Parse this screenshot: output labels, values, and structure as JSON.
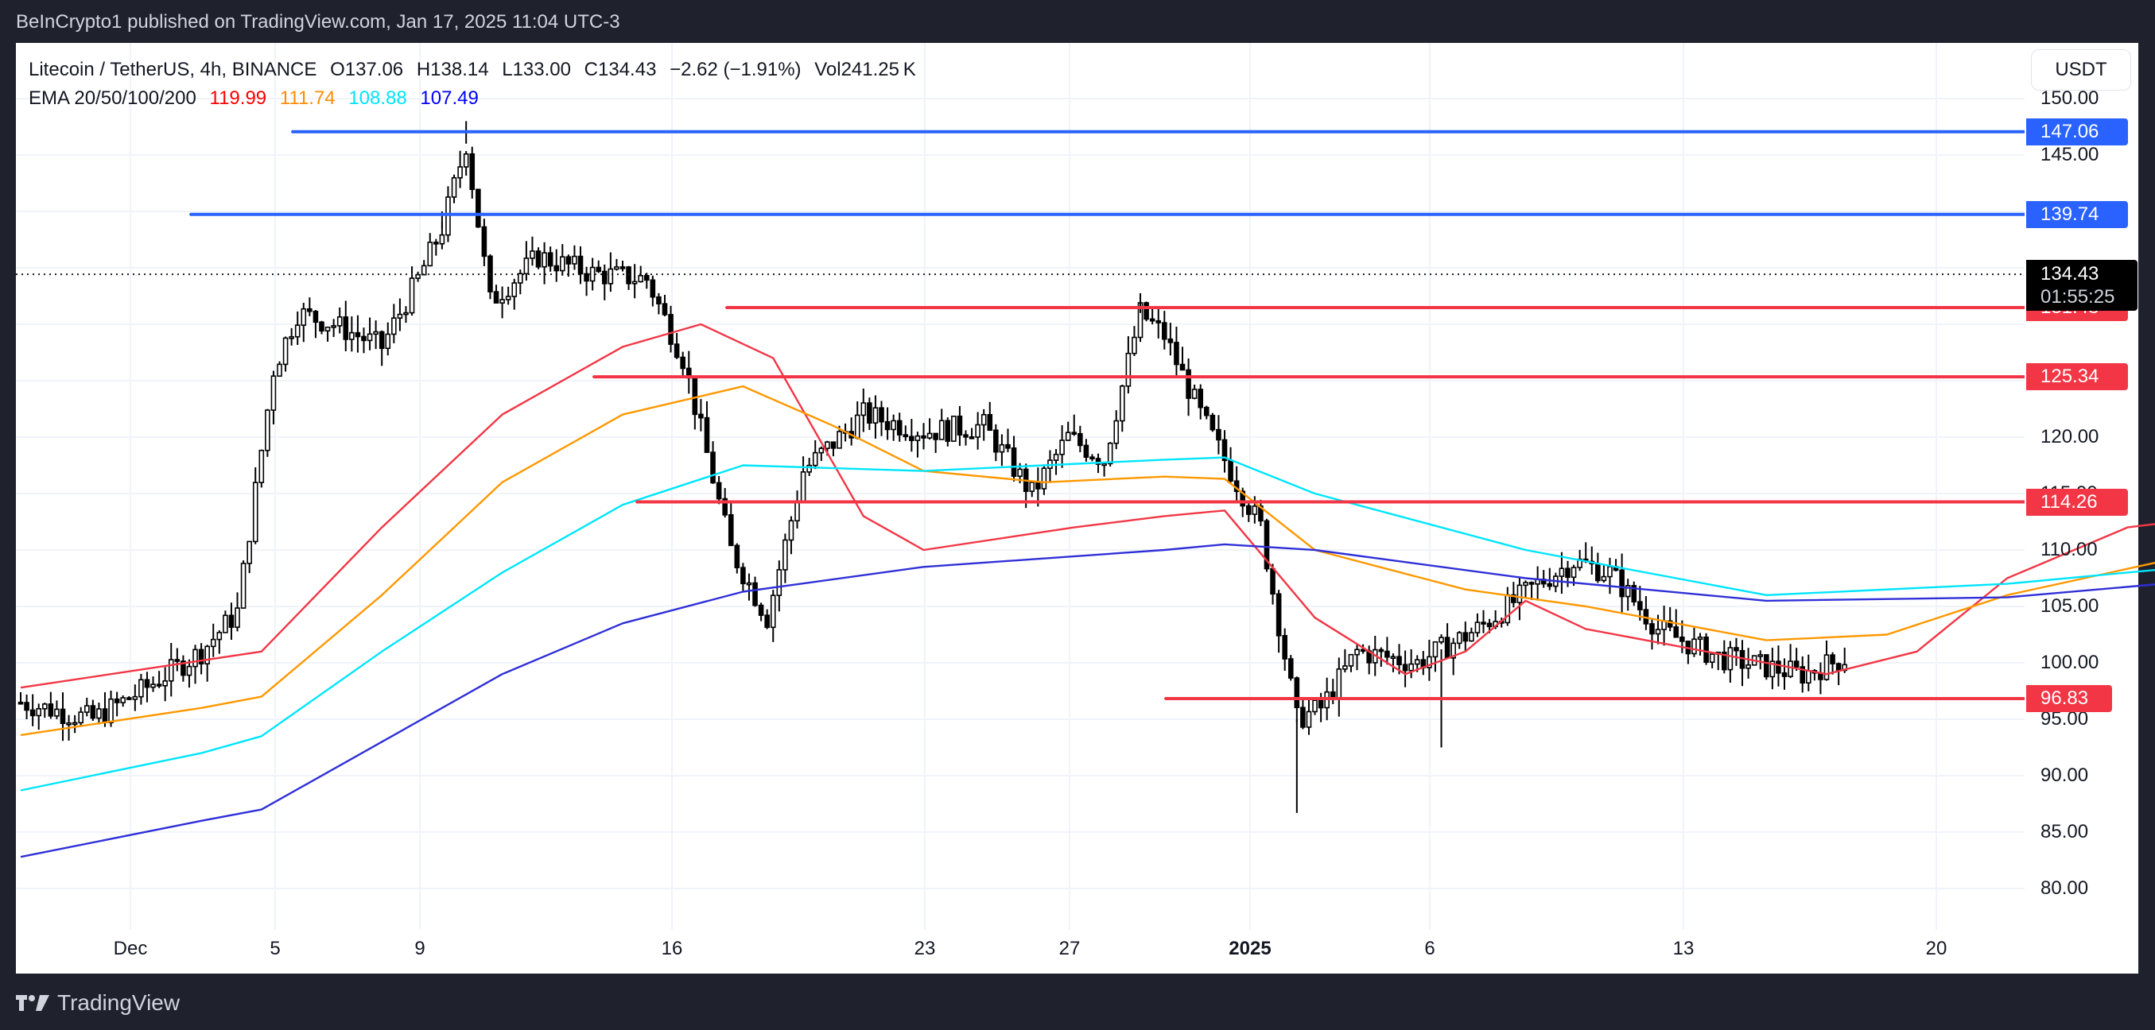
{
  "publish_line": "BeInCrypto1 published on TradingView.com, Jan 17, 2025 11:04 UTC-3",
  "header": {
    "symbol": "Litecoin / TetherUS, 4h, BINANCE",
    "open": "O137.06",
    "high": "H138.14",
    "low": "L133.00",
    "close": "C134.43",
    "change": "−2.62 (−1.91%)",
    "volume": "Vol241.25 K",
    "ema_label": "EMA 20/50/100/200",
    "ema_values": [
      "119.99",
      "111.74",
      "108.88",
      "107.49"
    ]
  },
  "currency_button": "USDT",
  "colors": {
    "ema20": "#f23645",
    "ema50": "#ff9800",
    "ema100": "#00e5ff",
    "ema200": "#2f2fd8",
    "ema20_text": "#ff0000",
    "ema50_text": "#ff8c00",
    "ema100_text": "#00e5ff",
    "ema200_text": "#0000ff",
    "resistance": "#2962ff",
    "support": "#f23645"
  },
  "price_axis": {
    "ticks": [
      "150.00",
      "145.00",
      "120.00",
      "115.00",
      "110.00",
      "105.00",
      "100.00",
      "95.00",
      "90.00",
      "85.00",
      "80.00"
    ]
  },
  "level_labels": [
    {
      "value": "147.06",
      "type": "resistance"
    },
    {
      "value": "139.74",
      "type": "resistance"
    },
    {
      "value": "131.48",
      "type": "support"
    },
    {
      "value": "125.34",
      "type": "support"
    },
    {
      "value": "114.26",
      "type": "support"
    },
    {
      "value": "96.83",
      "type": "support"
    }
  ],
  "last_price": {
    "value": "134.43",
    "countdown": "01:55:25"
  },
  "time_axis": {
    "ticks": [
      {
        "label": "Dec",
        "bold": false
      },
      {
        "label": "5",
        "bold": false
      },
      {
        "label": "9",
        "bold": false
      },
      {
        "label": "16",
        "bold": false
      },
      {
        "label": "23",
        "bold": false
      },
      {
        "label": "27",
        "bold": false
      },
      {
        "label": "2025",
        "bold": true
      },
      {
        "label": "6",
        "bold": false
      },
      {
        "label": "13",
        "bold": false
      },
      {
        "label": "20",
        "bold": false
      }
    ]
  },
  "footer": {
    "brand": "TradingView"
  },
  "chart_data": {
    "type": "candlestick",
    "title": "Litecoin / TetherUS, 4h, BINANCE",
    "xlabel": "",
    "ylabel": "USDT",
    "ylim": [
      77,
      151.5
    ],
    "grid": true,
    "x_ticks": [
      "Dec",
      "5",
      "9",
      "16",
      "23",
      "27",
      "2025",
      "6",
      "13",
      "20"
    ],
    "y_ticks": [
      80,
      85,
      90,
      95,
      100,
      105,
      110,
      115,
      120,
      125,
      130,
      135,
      140,
      145,
      150
    ],
    "last": {
      "open": 137.06,
      "high": 138.14,
      "low": 133.0,
      "close": 134.43,
      "change": -2.62,
      "change_pct": -1.91,
      "volume": "241.25K"
    },
    "horizontal_levels": [
      {
        "value": 147.06,
        "color": "blue",
        "start": "Dec 5"
      },
      {
        "value": 139.74,
        "color": "blue",
        "start": "Dec 3"
      },
      {
        "value": 131.48,
        "color": "red",
        "start": "Dec 18"
      },
      {
        "value": 125.34,
        "color": "red",
        "start": "Dec 14"
      },
      {
        "value": 114.26,
        "color": "red",
        "start": "Dec 15"
      },
      {
        "value": 96.83,
        "color": "red",
        "start": "Dec 30"
      }
    ],
    "series": [
      {
        "name": "EMA 20",
        "last": 119.99,
        "points": [
          [
            0,
            97.8
          ],
          [
            40,
            101
          ],
          [
            60,
            112
          ],
          [
            80,
            122
          ],
          [
            100,
            128
          ],
          [
            113,
            130
          ],
          [
            125,
            127
          ],
          [
            140,
            113
          ],
          [
            150,
            110
          ],
          [
            175,
            112
          ],
          [
            190,
            113
          ],
          [
            200,
            113.5
          ],
          [
            215,
            104
          ],
          [
            230,
            99
          ],
          [
            240,
            101
          ],
          [
            250,
            105.5
          ],
          [
            260,
            103
          ],
          [
            275,
            101.5
          ],
          [
            300,
            99
          ],
          [
            315,
            101
          ],
          [
            330,
            107.5
          ],
          [
            350,
            112
          ],
          [
            370,
            113.3
          ],
          [
            380,
            112
          ],
          [
            395,
            104
          ],
          [
            405,
            102
          ],
          [
            420,
            101.5
          ],
          [
            430,
            100.5
          ],
          [
            445,
            99
          ],
          [
            455,
            99.5
          ],
          [
            470,
            119.99
          ]
        ]
      },
      {
        "name": "EMA 50",
        "last": 111.74,
        "points": [
          [
            0,
            93.6
          ],
          [
            30,
            96
          ],
          [
            40,
            97
          ],
          [
            60,
            106
          ],
          [
            80,
            116
          ],
          [
            100,
            122
          ],
          [
            120,
            124.5
          ],
          [
            135,
            121
          ],
          [
            150,
            117
          ],
          [
            170,
            116
          ],
          [
            190,
            116.5
          ],
          [
            200,
            116.3
          ],
          [
            215,
            110
          ],
          [
            240,
            106.5
          ],
          [
            260,
            105
          ],
          [
            290,
            102
          ],
          [
            310,
            102.5
          ],
          [
            330,
            106
          ],
          [
            360,
            109.5
          ],
          [
            380,
            106.5
          ],
          [
            400,
            106
          ],
          [
            430,
            104
          ],
          [
            445,
            102
          ],
          [
            455,
            102.2
          ],
          [
            470,
            111.74
          ]
        ]
      },
      {
        "name": "EMA 100",
        "last": 108.88,
        "points": [
          [
            0,
            88.7
          ],
          [
            30,
            92
          ],
          [
            40,
            93.5
          ],
          [
            60,
            101
          ],
          [
            80,
            108
          ],
          [
            100,
            114
          ],
          [
            120,
            117.5
          ],
          [
            150,
            117
          ],
          [
            190,
            118
          ],
          [
            200,
            118.2
          ],
          [
            215,
            115
          ],
          [
            250,
            110
          ],
          [
            290,
            106
          ],
          [
            330,
            107
          ],
          [
            360,
            108.5
          ],
          [
            380,
            107
          ],
          [
            420,
            106.3
          ],
          [
            445,
            104.5
          ],
          [
            455,
            105
          ],
          [
            470,
            108.88
          ]
        ]
      },
      {
        "name": "EMA 200",
        "last": 107.49,
        "points": [
          [
            0,
            82.8
          ],
          [
            30,
            86
          ],
          [
            40,
            87
          ],
          [
            60,
            93
          ],
          [
            80,
            99
          ],
          [
            100,
            103.5
          ],
          [
            120,
            106.3
          ],
          [
            150,
            108.5
          ],
          [
            190,
            110
          ],
          [
            200,
            110.5
          ],
          [
            215,
            110
          ],
          [
            250,
            107.5
          ],
          [
            290,
            105.5
          ],
          [
            330,
            105.8
          ],
          [
            360,
            107.2
          ],
          [
            380,
            106.5
          ],
          [
            420,
            106
          ],
          [
            445,
            105.2
          ],
          [
            455,
            105.3
          ],
          [
            470,
            107.49
          ]
        ]
      }
    ]
  }
}
